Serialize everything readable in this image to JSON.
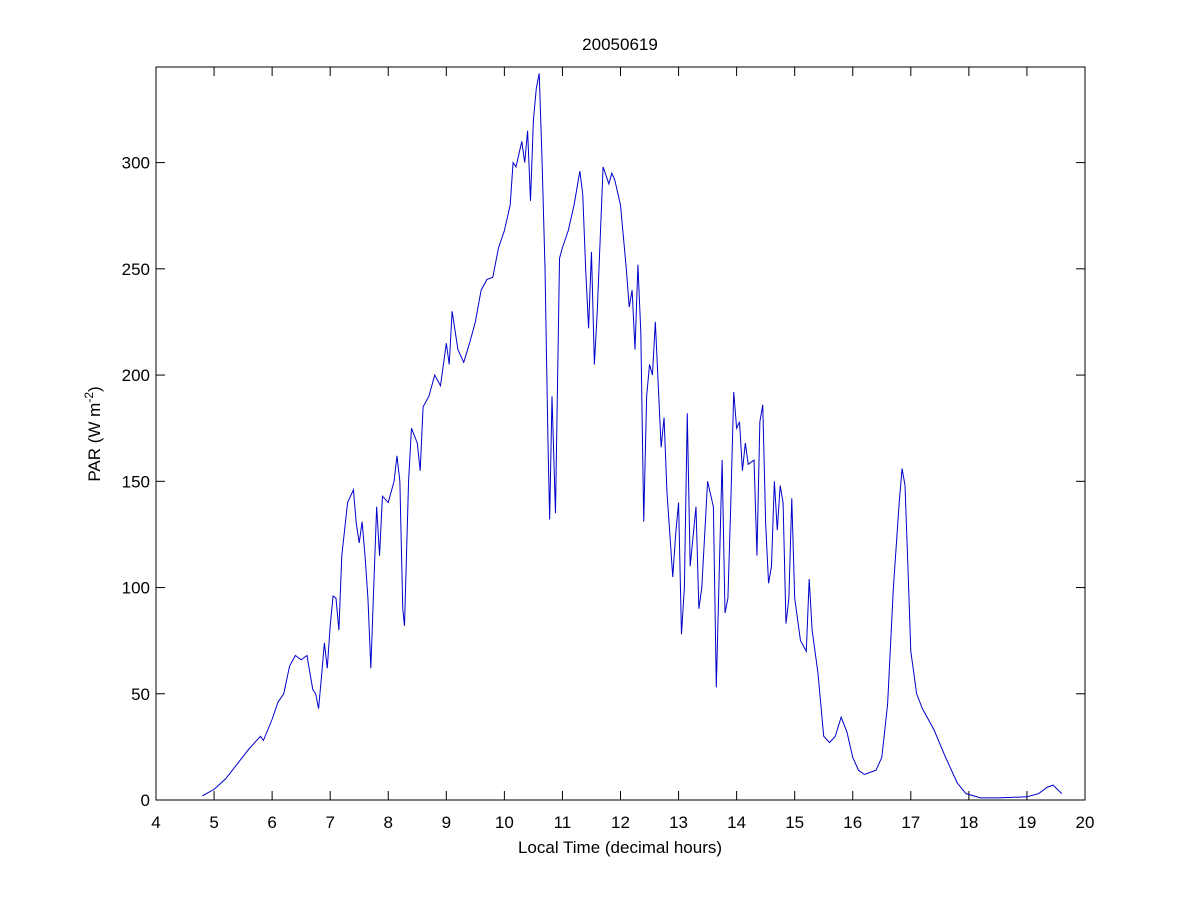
{
  "chart_data": {
    "type": "line",
    "title": "20050619",
    "x_label": "Local Time (decimal hours)",
    "y_label": "PAR (W m",
    "y_label_superscript": "-2",
    "y_label_end": ")",
    "xlim": [
      4,
      20
    ],
    "xticks": [
      4,
      5,
      6,
      7,
      8,
      9,
      10,
      11,
      12,
      13,
      14,
      15,
      16,
      17,
      18,
      19,
      20
    ],
    "ylim": [
      0,
      345
    ],
    "yticks": [
      0,
      50,
      100,
      150,
      200,
      250,
      300
    ],
    "grid": false,
    "color": "#0000cc",
    "x": [
      4.8,
      5.0,
      5.2,
      5.4,
      5.6,
      5.8,
      5.85,
      6.0,
      6.1,
      6.2,
      6.3,
      6.4,
      6.5,
      6.6,
      6.65,
      6.7,
      6.75,
      6.8,
      6.85,
      6.9,
      6.95,
      7.0,
      7.05,
      7.1,
      7.15,
      7.2,
      7.3,
      7.4,
      7.45,
      7.5,
      7.55,
      7.6,
      7.65,
      7.7,
      7.75,
      7.8,
      7.85,
      7.9,
      8.0,
      8.1,
      8.15,
      8.2,
      8.25,
      8.28,
      8.35,
      8.4,
      8.5,
      8.55,
      8.6,
      8.7,
      8.8,
      8.9,
      9.0,
      9.05,
      9.1,
      9.2,
      9.3,
      9.4,
      9.5,
      9.6,
      9.7,
      9.8,
      9.9,
      10.0,
      10.1,
      10.15,
      10.2,
      10.3,
      10.35,
      10.4,
      10.45,
      10.5,
      10.55,
      10.6,
      10.65,
      10.7,
      10.75,
      10.78,
      10.82,
      10.88,
      10.95,
      11.0,
      11.1,
      11.2,
      11.3,
      11.35,
      11.4,
      11.45,
      11.5,
      11.55,
      11.6,
      11.7,
      11.8,
      11.85,
      11.9,
      12.0,
      12.1,
      12.15,
      12.2,
      12.25,
      12.3,
      12.35,
      12.4,
      12.45,
      12.5,
      12.55,
      12.6,
      12.7,
      12.75,
      12.8,
      12.9,
      12.95,
      13.0,
      13.05,
      13.1,
      13.15,
      13.2,
      13.3,
      13.35,
      13.4,
      13.5,
      13.6,
      13.65,
      13.75,
      13.8,
      13.85,
      13.9,
      13.95,
      14.0,
      14.05,
      14.1,
      14.15,
      14.2,
      14.3,
      14.35,
      14.4,
      14.45,
      14.5,
      14.55,
      14.6,
      14.65,
      14.7,
      14.75,
      14.8,
      14.85,
      14.9,
      14.95,
      15.0,
      15.1,
      15.2,
      15.25,
      15.3,
      15.4,
      15.5,
      15.6,
      15.7,
      15.8,
      15.9,
      16.0,
      16.1,
      16.2,
      16.3,
      16.4,
      16.5,
      16.6,
      16.7,
      16.8,
      16.85,
      16.9,
      16.95,
      17.0,
      17.1,
      17.2,
      17.4,
      17.6,
      17.8,
      17.95,
      18.2,
      18.5,
      19.0,
      19.2,
      19.35,
      19.45,
      19.6
    ],
    "values": [
      2,
      5,
      10,
      17,
      24,
      30,
      28,
      38,
      46,
      50,
      63,
      68,
      66,
      68,
      60,
      52,
      50,
      43,
      58,
      74,
      62,
      82,
      96,
      95,
      80,
      115,
      140,
      146,
      130,
      121,
      131,
      115,
      95,
      62,
      100,
      138,
      115,
      143,
      140,
      150,
      162,
      150,
      90,
      82,
      150,
      175,
      168,
      155,
      185,
      190,
      200,
      195,
      215,
      205,
      230,
      212,
      206,
      215,
      225,
      240,
      245,
      246,
      260,
      268,
      280,
      300,
      298,
      310,
      300,
      315,
      282,
      320,
      335,
      342,
      300,
      250,
      170,
      132,
      190,
      135,
      255,
      260,
      268,
      280,
      296,
      285,
      250,
      222,
      258,
      205,
      230,
      298,
      290,
      295,
      292,
      280,
      250,
      232,
      240,
      212,
      252,
      220,
      131,
      190,
      205,
      200,
      225,
      166,
      180,
      145,
      105,
      125,
      140,
      78,
      100,
      182,
      110,
      138,
      90,
      100,
      150,
      138,
      53,
      160,
      88,
      95,
      140,
      192,
      175,
      178,
      155,
      168,
      158,
      160,
      115,
      178,
      186,
      130,
      102,
      110,
      150,
      127,
      148,
      140,
      83,
      95,
      142,
      95,
      75,
      70,
      104,
      80,
      60,
      30,
      27,
      30,
      39,
      32,
      20,
      14,
      12,
      13,
      14,
      20,
      45,
      100,
      140,
      156,
      148,
      110,
      70,
      50,
      43,
      33,
      20,
      8,
      3,
      1,
      1,
      1.5,
      3,
      6,
      7,
      3
    ]
  }
}
